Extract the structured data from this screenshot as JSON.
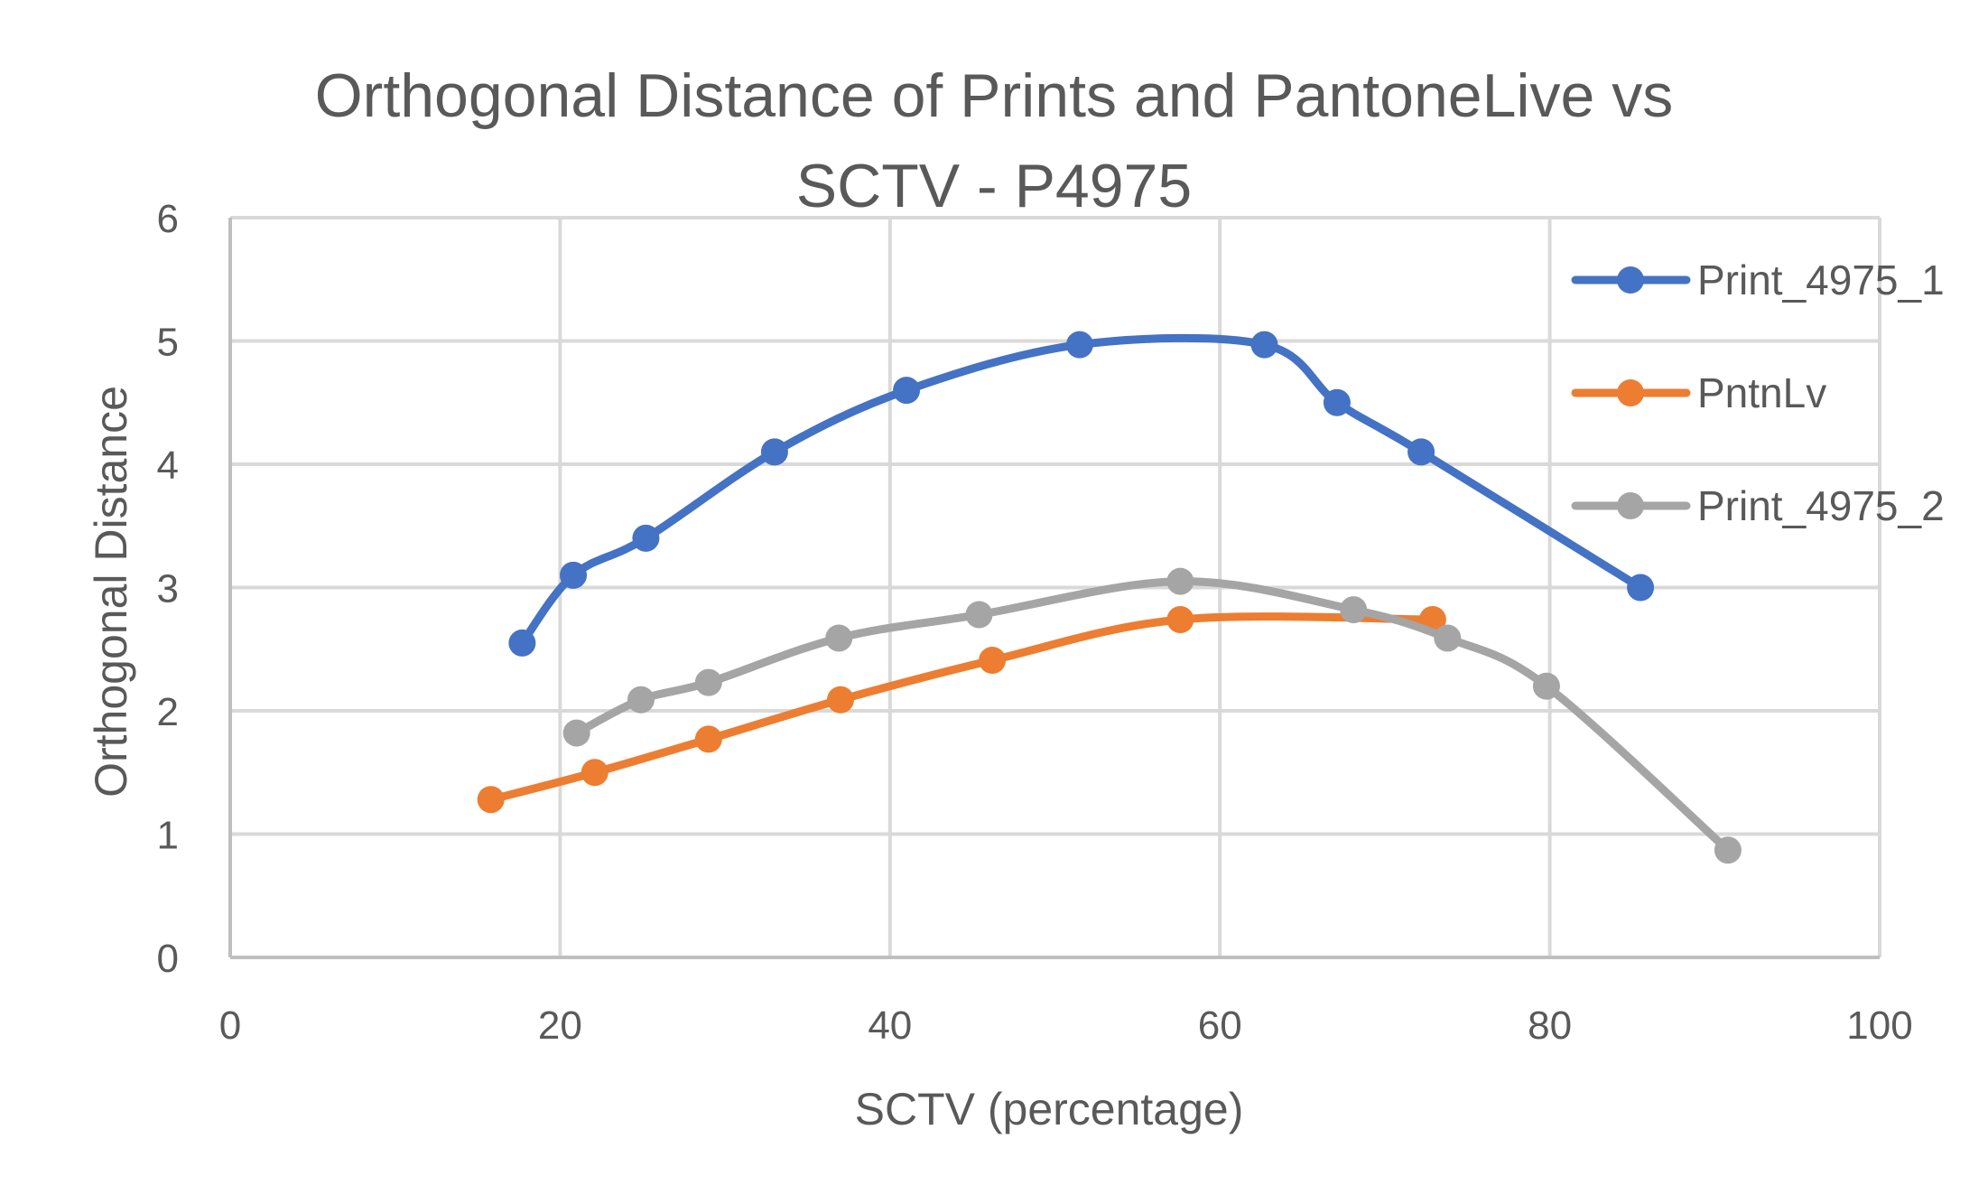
{
  "chart_data": {
    "type": "scatter",
    "title_line1": "Orthogonal Distance of Prints and PantoneLive vs",
    "title_line2": "SCTV - P4975",
    "xlabel": "SCTV (percentage)",
    "ylabel": "Orthogonal Distance",
    "xlim": [
      0,
      100
    ],
    "ylim": [
      0,
      6
    ],
    "xticks": [
      0,
      20,
      40,
      60,
      80,
      100
    ],
    "yticks": [
      0,
      1,
      2,
      3,
      4,
      5,
      6
    ],
    "grid": true,
    "smooth_lines": true,
    "legend_position": "right",
    "series": [
      {
        "name": "Print_4975_1",
        "color": "#4472C4",
        "points": [
          [
            17.7,
            2.55
          ],
          [
            20.8,
            3.1
          ],
          [
            25.2,
            3.4
          ],
          [
            33.0,
            4.1
          ],
          [
            41.0,
            4.6
          ],
          [
            51.5,
            4.97
          ],
          [
            62.7,
            4.97
          ],
          [
            67.1,
            4.5
          ],
          [
            72.2,
            4.1
          ],
          [
            85.5,
            3.0
          ]
        ]
      },
      {
        "name": "PntnLv",
        "color": "#ED7D31",
        "points": [
          [
            15.8,
            1.28
          ],
          [
            22.1,
            1.5
          ],
          [
            29.0,
            1.77
          ],
          [
            37.0,
            2.09
          ],
          [
            46.2,
            2.41
          ],
          [
            57.6,
            2.74
          ],
          [
            72.9,
            2.74
          ]
        ]
      },
      {
        "name": "Print_4975_2",
        "color": "#A5A5A5",
        "points": [
          [
            21.0,
            1.82
          ],
          [
            24.9,
            2.09
          ],
          [
            29.0,
            2.23
          ],
          [
            36.9,
            2.59
          ],
          [
            45.4,
            2.78
          ],
          [
            57.6,
            3.05
          ],
          [
            68.1,
            2.82
          ],
          [
            73.8,
            2.59
          ],
          [
            79.8,
            2.2
          ],
          [
            90.8,
            0.87
          ]
        ]
      }
    ]
  }
}
